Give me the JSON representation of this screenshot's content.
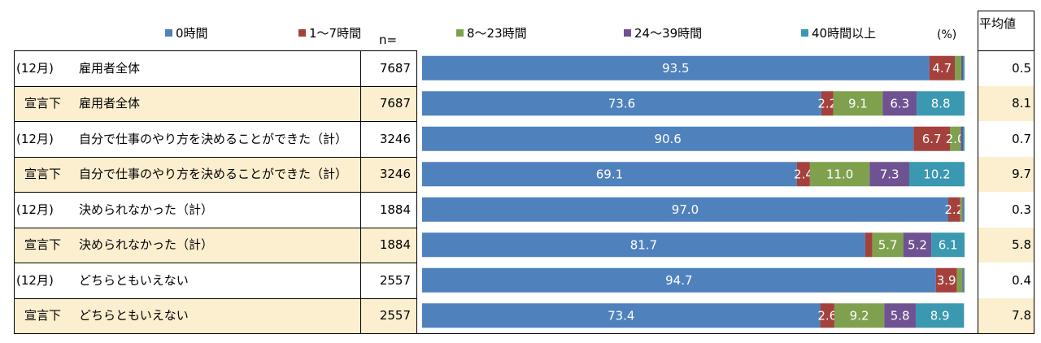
{
  "legend": {
    "n_label": "n=",
    "pct_label": "(%)",
    "avg_header": "平均値"
  },
  "chart_data": {
    "type": "bar",
    "orientation": "horizontal",
    "stacked": true,
    "xlim": [
      0,
      100
    ],
    "unit": "%",
    "series": [
      {
        "name": "0時間",
        "color": "#4F81BD"
      },
      {
        "name": "1～7時間",
        "color": "#A5413D"
      },
      {
        "name": "8～23時間",
        "color": "#7FA14E"
      },
      {
        "name": "24～39時間",
        "color": "#6E5291"
      },
      {
        "name": "40時間以上",
        "color": "#3A98B0"
      }
    ],
    "rows": [
      {
        "period": "(12月)",
        "group": "雇用者全体",
        "n": "7687",
        "avg": "0.5",
        "highlight": false,
        "values": [
          93.5,
          4.7,
          1.2,
          0.3,
          0.3
        ],
        "labels": [
          "93.5",
          "4.7",
          "",
          "",
          ""
        ]
      },
      {
        "period": "宣言下",
        "group": "雇用者全体",
        "n": "7687",
        "avg": "8.1",
        "highlight": true,
        "values": [
          73.6,
          2.2,
          9.1,
          6.3,
          8.8
        ],
        "labels": [
          "73.6",
          "2.2",
          "9.1",
          "6.3",
          "8.8"
        ]
      },
      {
        "period": "(12月)",
        "group": "自分で仕事のやり方を決めることができた（計）",
        "n": "3246",
        "avg": "0.7",
        "highlight": false,
        "values": [
          90.6,
          6.7,
          2.0,
          0.4,
          0.3
        ],
        "labels": [
          "90.6",
          "6.7",
          "2.0",
          "",
          ""
        ]
      },
      {
        "period": "宣言下",
        "group": "自分で仕事のやり方を決めることができた（計）",
        "n": "3246",
        "avg": "9.7",
        "highlight": true,
        "values": [
          69.1,
          2.4,
          11.0,
          7.3,
          10.2
        ],
        "labels": [
          "69.1",
          "2.4",
          "11.0",
          "7.3",
          "10.2"
        ]
      },
      {
        "period": "(12月)",
        "group": "決められなかった（計）",
        "n": "1884",
        "avg": "0.3",
        "highlight": false,
        "values": [
          97.0,
          2.2,
          0.4,
          0.2,
          0.2
        ],
        "labels": [
          "97.0",
          "2.2",
          "",
          "",
          ""
        ]
      },
      {
        "period": "宣言下",
        "group": "決められなかった（計）",
        "n": "1884",
        "avg": "5.8",
        "highlight": true,
        "values": [
          81.7,
          1.3,
          5.7,
          5.2,
          6.1
        ],
        "labels": [
          "81.7",
          "",
          "5.7",
          "5.2",
          "6.1"
        ]
      },
      {
        "period": "(12月)",
        "group": "どちらともいえない",
        "n": "2557",
        "avg": "0.4",
        "highlight": false,
        "values": [
          94.7,
          3.9,
          1.0,
          0.2,
          0.2
        ],
        "labels": [
          "94.7",
          "3.9",
          "",
          "",
          ""
        ]
      },
      {
        "period": "宣言下",
        "group": "どちらともいえない",
        "n": "2557",
        "avg": "7.8",
        "highlight": true,
        "values": [
          73.4,
          2.6,
          9.2,
          5.8,
          8.9
        ],
        "labels": [
          "73.4",
          "2.6",
          "9.2",
          "5.8",
          "8.9"
        ]
      }
    ]
  }
}
